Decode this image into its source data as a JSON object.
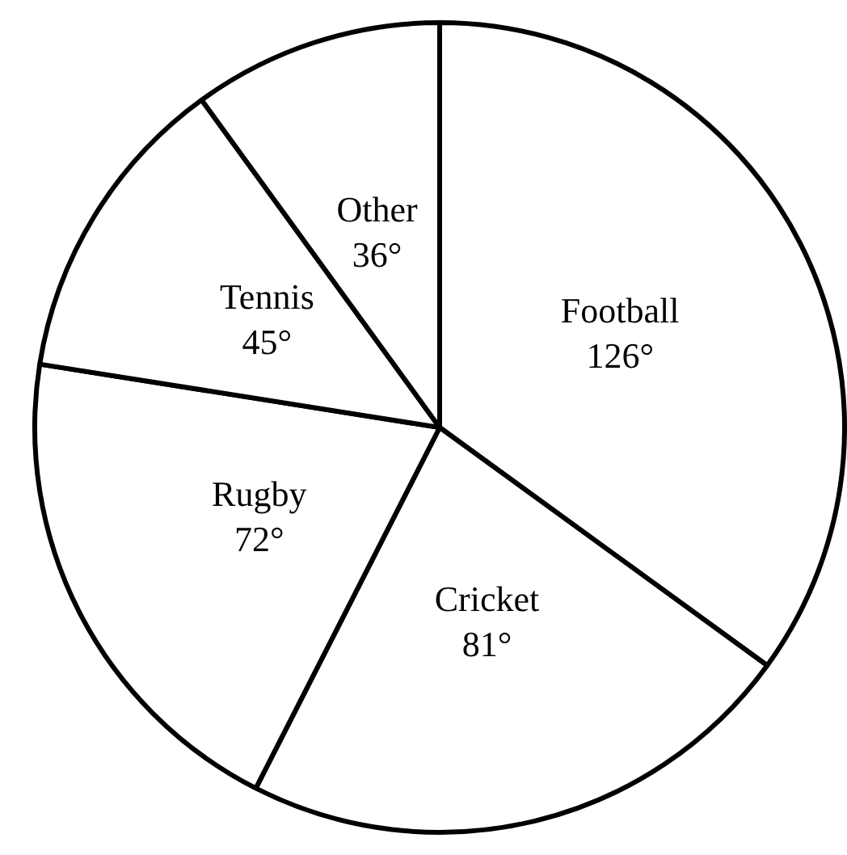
{
  "chart_data": {
    "type": "pie",
    "categories": [
      "Football",
      "Cricket",
      "Rugby",
      "Tennis",
      "Other"
    ],
    "values": [
      126,
      81,
      72,
      45,
      36
    ],
    "colors": [
      "#ffffff",
      "#ffffff",
      "#ffffff",
      "#ffffff",
      "#ffffff"
    ],
    "value_labels": [
      "126°",
      "81°",
      "72°",
      "45°",
      "36°"
    ],
    "legend": false
  }
}
